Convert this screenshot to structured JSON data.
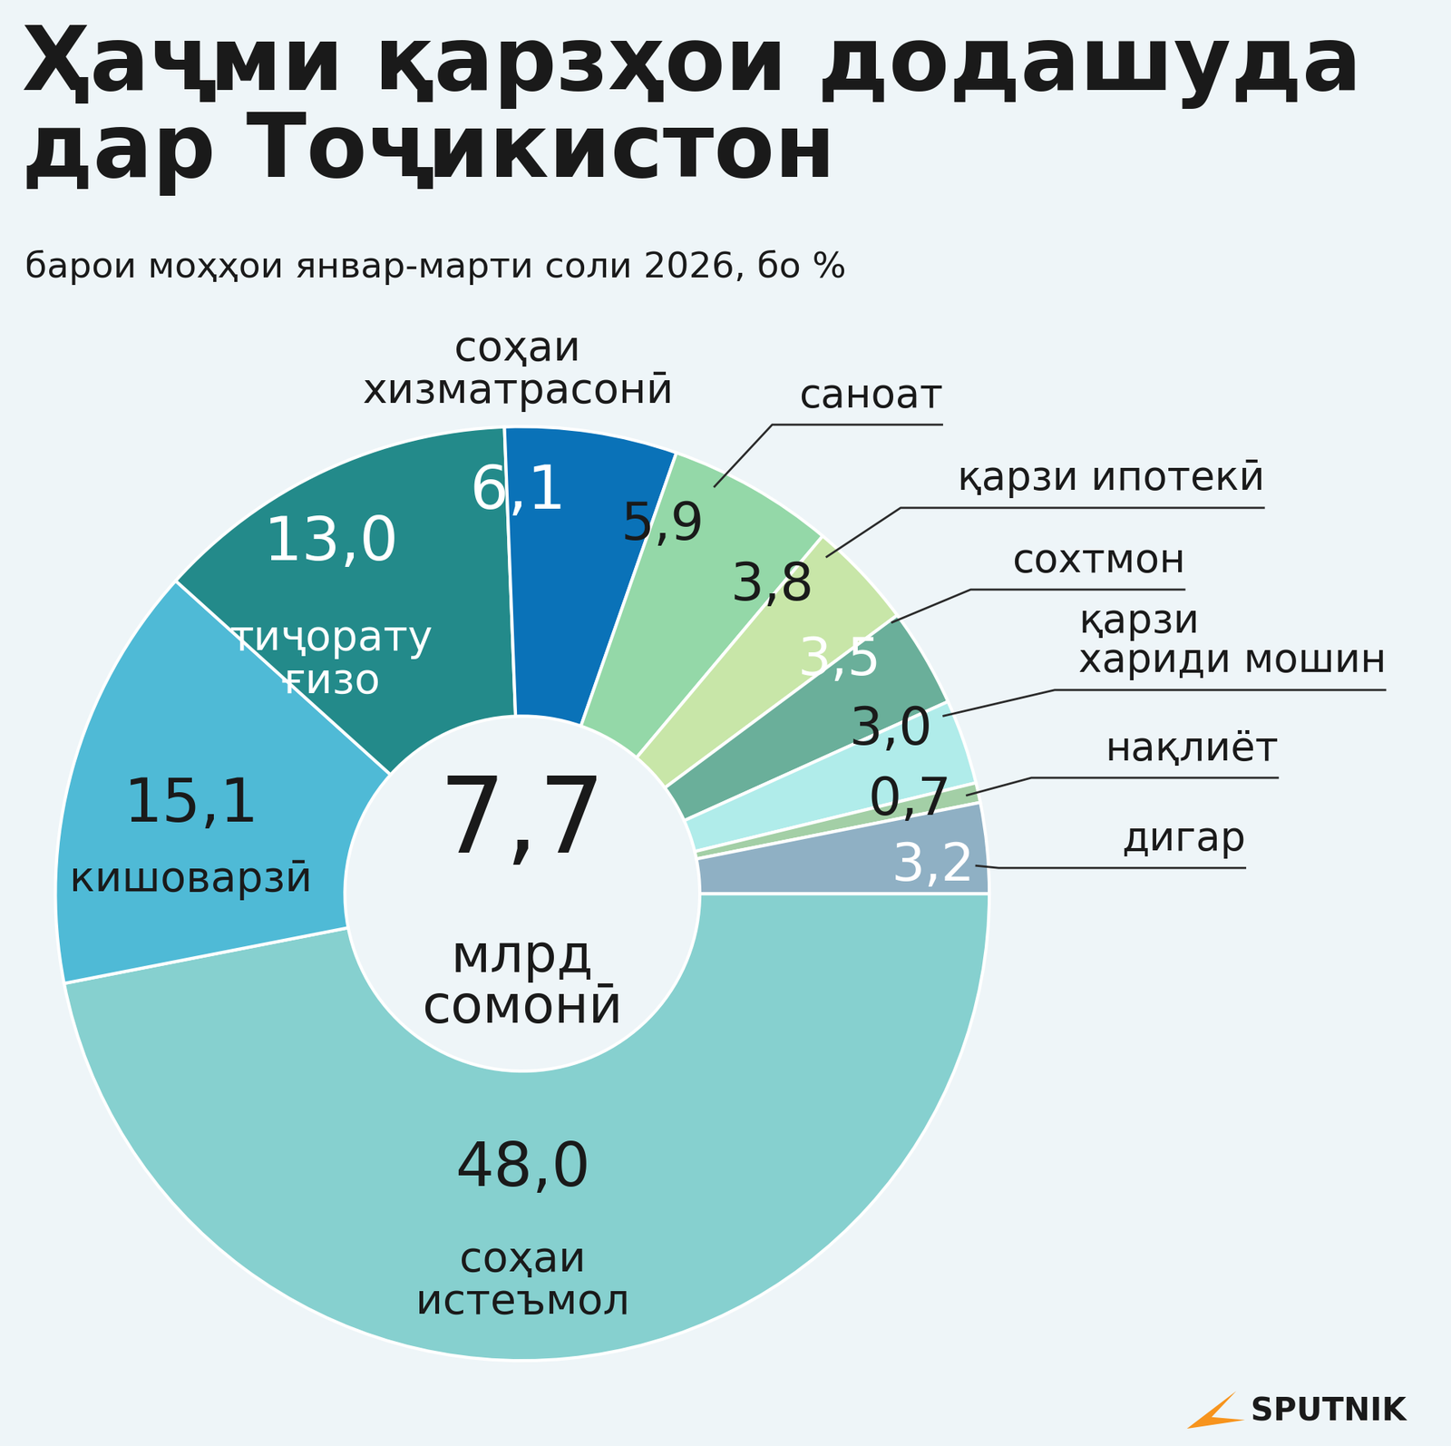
{
  "chart_data": {
    "type": "pie",
    "title": "Ҳаҷми қарзҳои додашуда\nдар Тоҷикистон",
    "subtitle": "барои моҳҳои январ-марти соли 2026, бо %",
    "total": {
      "value": 7.7,
      "label": "7,7"
    },
    "total_unit": "млрд\nсомонӣ",
    "categories": [
      "соҳаи\nистеъмол",
      "кишоварзӣ",
      "тиҷорату\nғизо",
      "соҳаи\nхизматрасонӣ",
      "саноат",
      "қарзи ипотекӣ",
      "сохтмон",
      "қарзи\nхариди мошин",
      "нақлиёт",
      "дигар"
    ],
    "values": [
      48.0,
      15.1,
      13.0,
      6.1,
      5.9,
      3.8,
      3.5,
      3.0,
      0.7,
      3.2
    ],
    "value_labels": [
      "48,0",
      "15,1",
      "13,0",
      "6,1",
      "5,9",
      "3,8",
      "3,5",
      "3,0",
      "0,7",
      "3,2"
    ],
    "colors": [
      "#86d0cf",
      "#4fbad6",
      "#238a8a",
      "#0a72b8",
      "#94d8a8",
      "#c8e6a8",
      "#6aaf9a",
      "#b0ecea",
      "#a3cfa6",
      "#8fb0c4"
    ],
    "data_labels": true,
    "source": "SPUTNIK"
  }
}
